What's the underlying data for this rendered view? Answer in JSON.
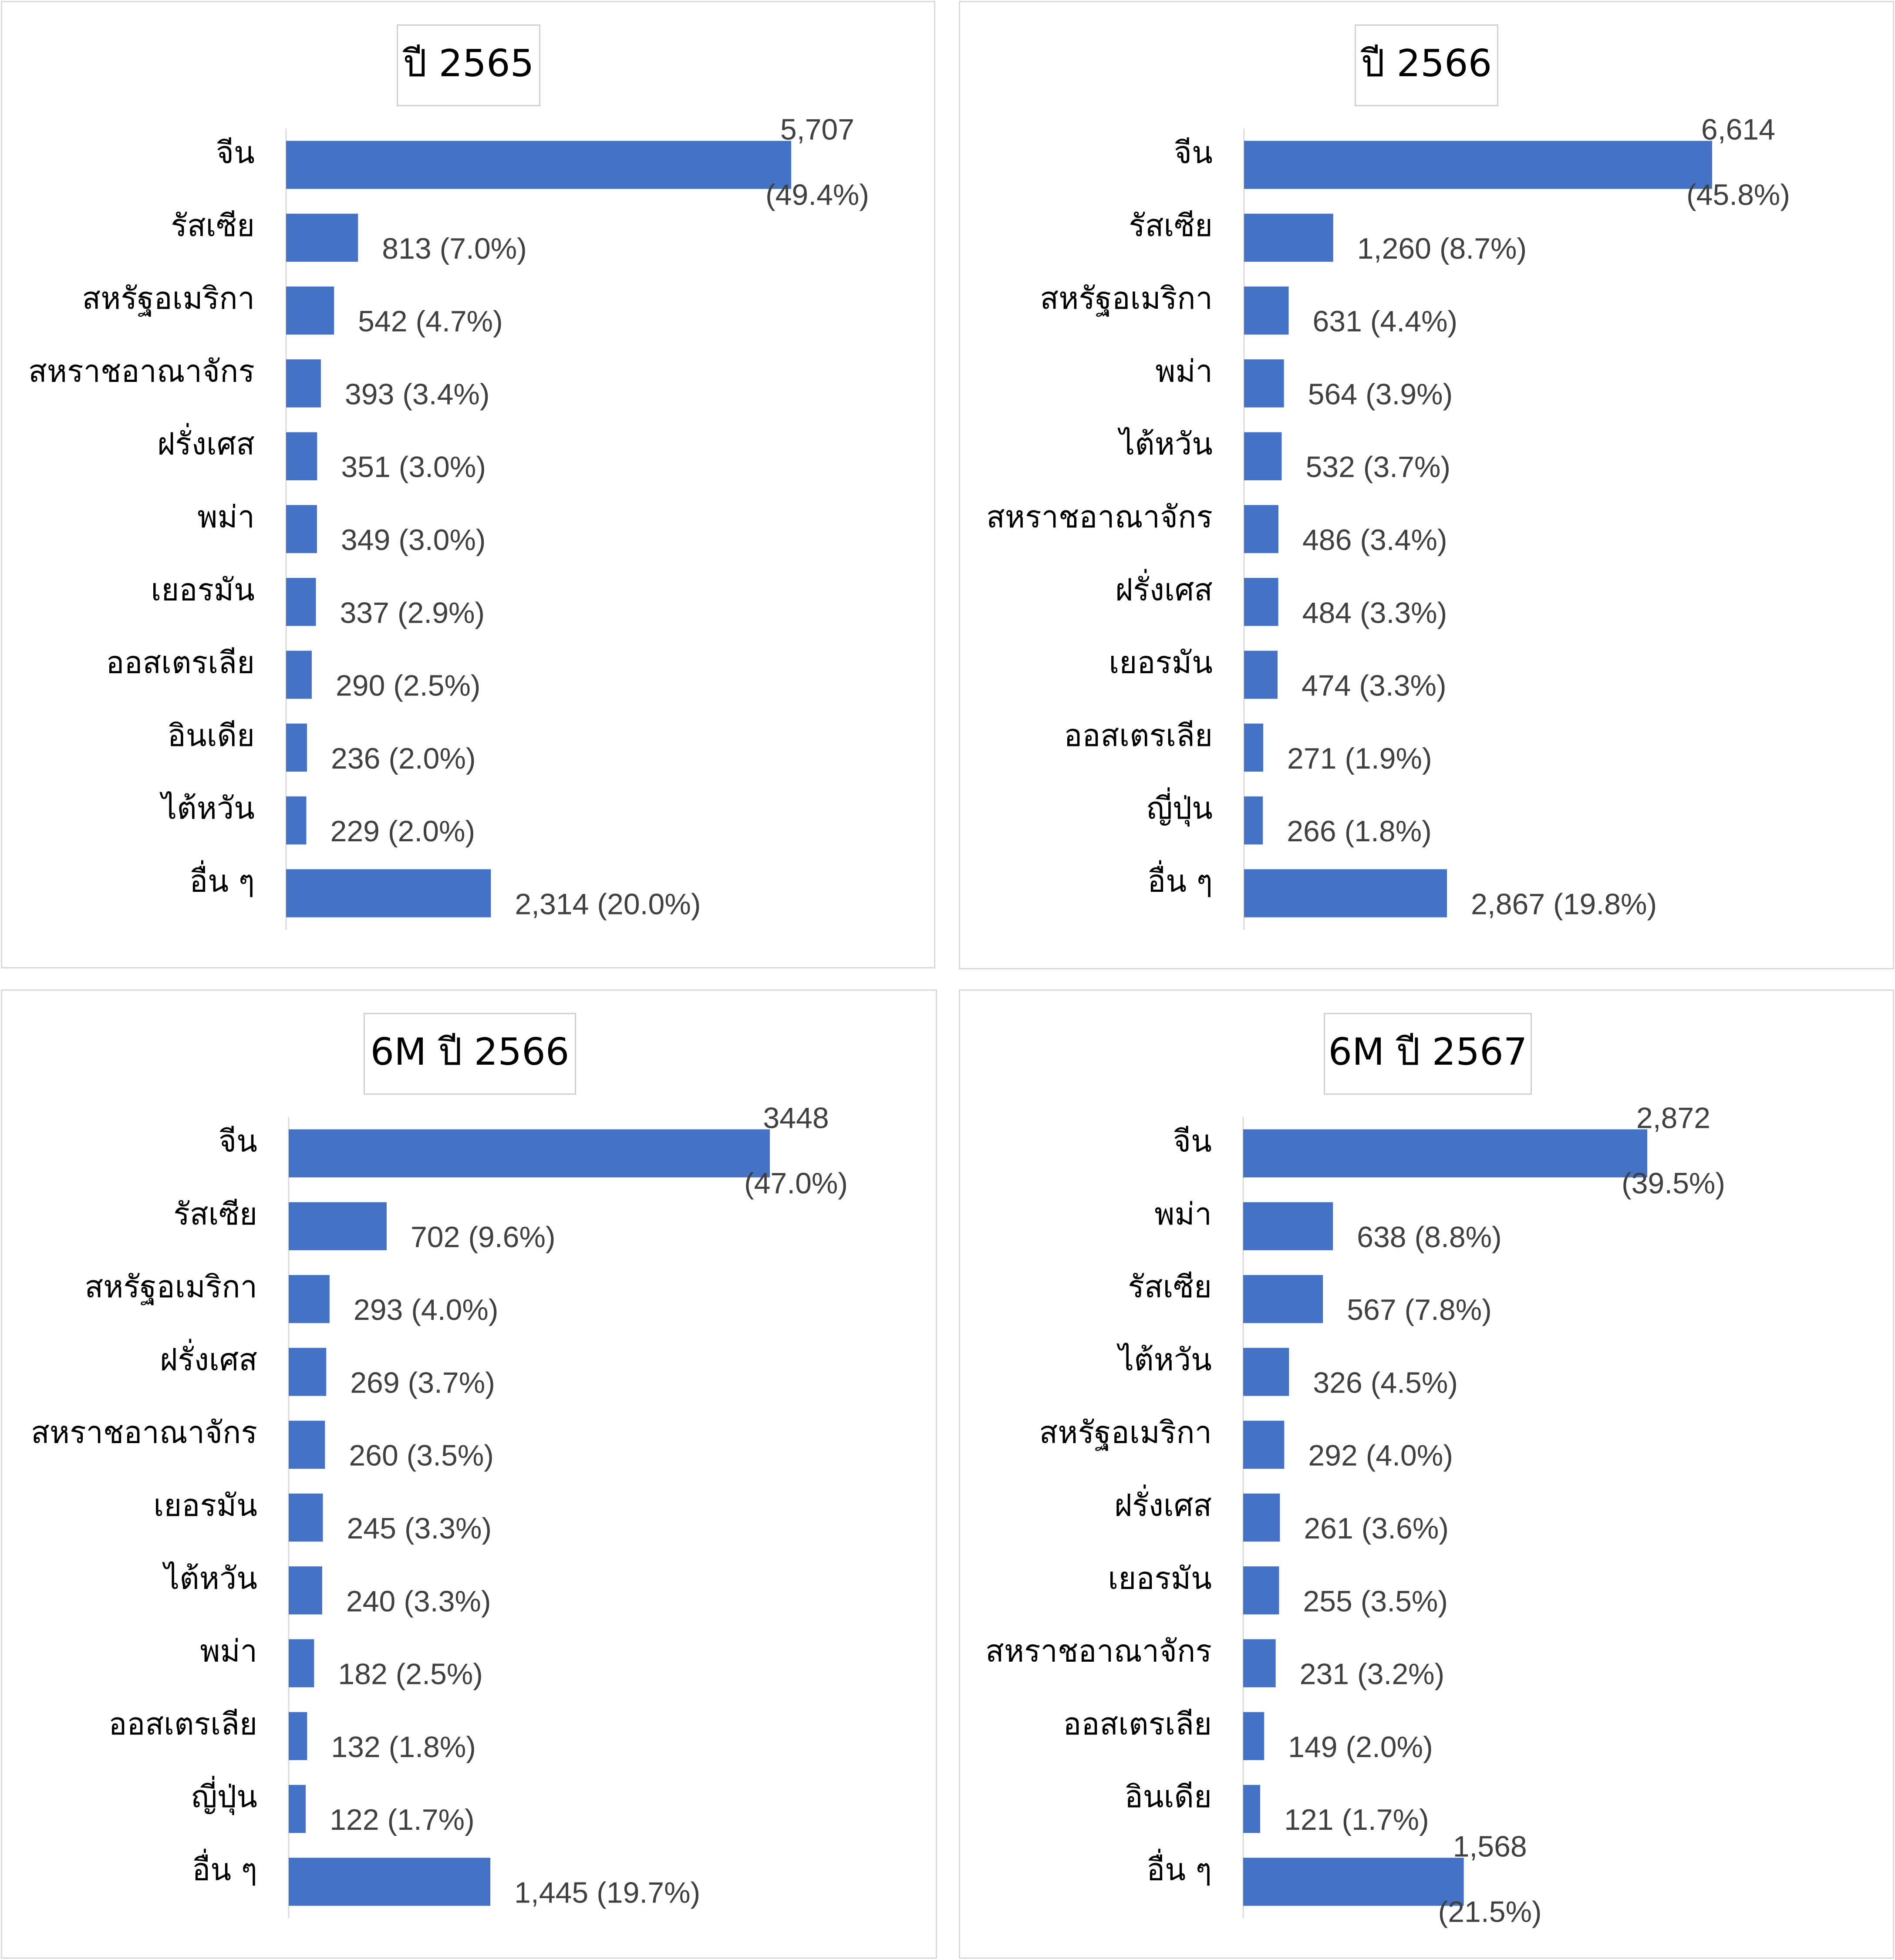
{
  "chart_data": [
    {
      "type": "bar",
      "orientation": "horizontal",
      "title": "ปี 2565",
      "categories": [
        "จีน",
        "รัสเซีย",
        "สหรัฐอเมริกา",
        "สหราชอาณาจักร",
        "ฝรั่งเศส",
        "พม่า",
        "เยอรมัน",
        "ออสเตรเลีย",
        "อินเดีย",
        "ไต้หวัน",
        "อื่น ๆ"
      ],
      "values": [
        5707,
        813,
        542,
        393,
        351,
        349,
        337,
        290,
        236,
        229,
        2314
      ],
      "data_labels": [
        "5,707",
        "813 (7.0%)",
        "542 (4.7%)",
        "393 (3.4%)",
        "351 (3.0%)",
        "349 (3.0%)",
        "337 (2.9%)",
        "290 (2.5%)",
        "236 (2.0%)",
        "229 (2.0%)",
        "2,314 (20.0%)"
      ],
      "data_labels_line2": [
        "(49.4%)",
        "",
        "",
        "",
        "",
        "",
        "",
        "",
        "",
        "",
        ""
      ],
      "bar_color": "#4472c4",
      "grid": false
    },
    {
      "type": "bar",
      "orientation": "horizontal",
      "title": "ปี 2566",
      "categories": [
        "จีน",
        "รัสเซีย",
        "สหรัฐอเมริกา",
        "พม่า",
        "ไต้หวัน",
        "สหราชอาณาจักร",
        "ฝรั่งเศส",
        "เยอรมัน",
        "ออสเตรเลีย",
        "ญี่ปุ่น",
        "อื่น ๆ"
      ],
      "values": [
        6614,
        1260,
        631,
        564,
        532,
        486,
        484,
        474,
        271,
        266,
        2867
      ],
      "data_labels": [
        "6,614",
        "1,260 (8.7%)",
        "631 (4.4%)",
        "564 (3.9%)",
        "532 (3.7%)",
        "486 (3.4%)",
        "484 (3.3%)",
        "474 (3.3%)",
        "271 (1.9%)",
        "266 (1.8%)",
        "2,867 (19.8%)"
      ],
      "data_labels_line2": [
        "(45.8%)",
        "",
        "",
        "",
        "",
        "",
        "",
        "",
        "",
        "",
        ""
      ],
      "bar_color": "#4472c4",
      "grid": false
    },
    {
      "type": "bar",
      "orientation": "horizontal",
      "title": "6M ปี 2566",
      "categories": [
        "จีน",
        "รัสเซีย",
        "สหรัฐอเมริกา",
        "ฝรั่งเศส",
        "สหราชอาณาจักร",
        "เยอรมัน",
        "ไต้หวัน",
        "พม่า",
        "ออสเตรเลีย",
        "ญี่ปุ่น",
        "อื่น ๆ"
      ],
      "values": [
        3448,
        702,
        293,
        269,
        260,
        245,
        240,
        182,
        132,
        122,
        1445
      ],
      "data_labels": [
        "3448",
        "702 (9.6%)",
        "293 (4.0%)",
        "269 (3.7%)",
        "260 (3.5%)",
        "245 (3.3%)",
        "240 (3.3%)",
        "182 (2.5%)",
        "132 (1.8%)",
        "122 (1.7%)",
        "1,445 (19.7%)"
      ],
      "data_labels_line2": [
        "(47.0%)",
        "",
        "",
        "",
        "",
        "",
        "",
        "",
        "",
        "",
        ""
      ],
      "bar_color": "#4472c4",
      "grid": false
    },
    {
      "type": "bar",
      "orientation": "horizontal",
      "title": "6M ปี 2567",
      "categories": [
        "จีน",
        "พม่า",
        "รัสเซีย",
        "ไต้หวัน",
        "สหรัฐอเมริกา",
        "ฝรั่งเศส",
        "เยอรมัน",
        "สหราชอาณาจักร",
        "ออสเตรเลีย",
        "อินเดีย",
        "อื่น ๆ"
      ],
      "values": [
        2872,
        638,
        567,
        326,
        292,
        261,
        255,
        231,
        149,
        121,
        1568
      ],
      "data_labels": [
        "2,872",
        "638 (8.8%)",
        "567 (7.8%)",
        "326 (4.5%)",
        "292 (4.0%)",
        "261 (3.6%)",
        "255 (3.5%)",
        "231 (3.2%)",
        "149 (2.0%)",
        "121 (1.7%)",
        "1,568"
      ],
      "data_labels_line2": [
        "(39.5%)",
        "",
        "",
        "",
        "",
        "",
        "",
        "",
        "",
        "",
        "(21.5%)"
      ],
      "bar_color": "#4472c4",
      "grid": false
    }
  ]
}
